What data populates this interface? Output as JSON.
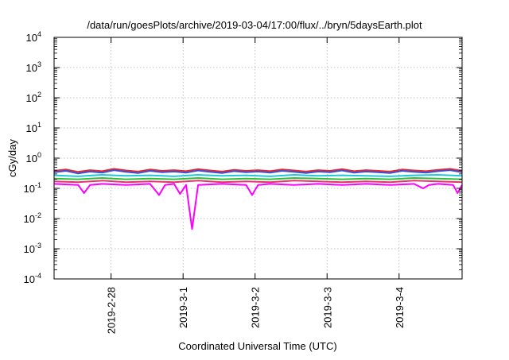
{
  "chart_data": {
    "type": "line",
    "title": "/data/run/goesPlots/archive/2019-03-04/17:00/flux/../bryn/5daysEarth.plot",
    "xlabel": "Coordinated Universal Time (UTC)",
    "ylabel": "cGy/day",
    "yscale": "log",
    "ylim": [
      0.0001,
      10000
    ],
    "xlim": [
      "2019-02-27 05:00",
      "2019-03-04 21:00"
    ],
    "grid": true,
    "legend": "none",
    "y_ticks": [
      {
        "value": 0.0001,
        "base": "10",
        "exp": "-4"
      },
      {
        "value": 0.001,
        "base": "10",
        "exp": "-3"
      },
      {
        "value": 0.01,
        "base": "10",
        "exp": "-2"
      },
      {
        "value": 0.1,
        "base": "10",
        "exp": "-1"
      },
      {
        "value": 1,
        "base": "10",
        "exp": "0"
      },
      {
        "value": 10,
        "base": "10",
        "exp": "1"
      },
      {
        "value": 100,
        "base": "10",
        "exp": "2"
      },
      {
        "value": 1000,
        "base": "10",
        "exp": "3"
      },
      {
        "value": 10000,
        "base": "10",
        "exp": "4"
      }
    ],
    "x_ticks": [
      {
        "value": "2019-02-28 00:00",
        "label": "2019-2-28"
      },
      {
        "value": "2019-03-01 00:00",
        "label": "2019-3-1"
      },
      {
        "value": "2019-03-02 00:00",
        "label": "2019-3-2"
      },
      {
        "value": "2019-03-03 00:00",
        "label": "2019-3-3"
      },
      {
        "value": "2019-03-04 00:00",
        "label": "2019-3-4"
      }
    ],
    "series": [
      {
        "color": "#e8272a",
        "x": [
          "2019-02-27 05:00",
          "2019-02-27 09:00",
          "2019-02-27 13:00",
          "2019-02-27 17:00",
          "2019-02-27 21:00",
          "2019-02-28 01:00",
          "2019-02-28 05:00",
          "2019-02-28 09:00",
          "2019-02-28 13:00",
          "2019-02-28 17:00",
          "2019-02-28 21:00",
          "2019-03-01 01:00",
          "2019-03-01 05:00",
          "2019-03-01 09:00",
          "2019-03-01 13:00",
          "2019-03-01 17:00",
          "2019-03-01 21:00",
          "2019-03-02 01:00",
          "2019-03-02 05:00",
          "2019-03-02 09:00",
          "2019-03-02 13:00",
          "2019-03-02 17:00",
          "2019-03-02 21:00",
          "2019-03-03 01:00",
          "2019-03-03 05:00",
          "2019-03-03 09:00",
          "2019-03-03 13:00",
          "2019-03-03 17:00",
          "2019-03-03 21:00",
          "2019-03-04 01:00",
          "2019-03-04 05:00",
          "2019-03-04 09:00",
          "2019-03-04 13:00",
          "2019-03-04 17:00",
          "2019-03-04 21:00"
        ],
        "y": [
          0.38,
          0.42,
          0.35,
          0.4,
          0.37,
          0.44,
          0.39,
          0.36,
          0.42,
          0.38,
          0.4,
          0.37,
          0.43,
          0.39,
          0.36,
          0.41,
          0.38,
          0.4,
          0.37,
          0.42,
          0.39,
          0.36,
          0.4,
          0.38,
          0.43,
          0.37,
          0.4,
          0.38,
          0.36,
          0.42,
          0.39,
          0.37,
          0.41,
          0.44,
          0.38
        ]
      },
      {
        "color": "#3b4fd8",
        "x": [
          "2019-02-27 05:00",
          "2019-02-27 09:00",
          "2019-02-27 13:00",
          "2019-02-27 17:00",
          "2019-02-27 21:00",
          "2019-02-28 01:00",
          "2019-02-28 05:00",
          "2019-02-28 09:00",
          "2019-02-28 13:00",
          "2019-02-28 17:00",
          "2019-02-28 21:00",
          "2019-03-01 01:00",
          "2019-03-01 05:00",
          "2019-03-01 09:00",
          "2019-03-01 13:00",
          "2019-03-01 17:00",
          "2019-03-01 21:00",
          "2019-03-02 01:00",
          "2019-03-02 05:00",
          "2019-03-02 09:00",
          "2019-03-02 13:00",
          "2019-03-02 17:00",
          "2019-03-02 21:00",
          "2019-03-03 01:00",
          "2019-03-03 05:00",
          "2019-03-03 09:00",
          "2019-03-03 13:00",
          "2019-03-03 17:00",
          "2019-03-03 21:00",
          "2019-03-04 01:00",
          "2019-03-04 05:00",
          "2019-03-04 09:00",
          "2019-03-04 13:00",
          "2019-03-04 17:00",
          "2019-03-04 21:00"
        ],
        "y": [
          0.34,
          0.38,
          0.31,
          0.36,
          0.33,
          0.4,
          0.35,
          0.32,
          0.38,
          0.34,
          0.36,
          0.33,
          0.39,
          0.35,
          0.32,
          0.37,
          0.34,
          0.36,
          0.33,
          0.38,
          0.35,
          0.32,
          0.36,
          0.34,
          0.39,
          0.33,
          0.36,
          0.34,
          0.32,
          0.38,
          0.35,
          0.33,
          0.37,
          0.4,
          0.34
        ]
      },
      {
        "color": "#1ec8d8",
        "x": [
          "2019-02-27 05:00",
          "2019-02-27 13:00",
          "2019-02-27 21:00",
          "2019-02-28 05:00",
          "2019-02-28 13:00",
          "2019-02-28 21:00",
          "2019-03-01 05:00",
          "2019-03-01 13:00",
          "2019-03-01 21:00",
          "2019-03-02 05:00",
          "2019-03-02 13:00",
          "2019-03-02 21:00",
          "2019-03-03 05:00",
          "2019-03-03 13:00",
          "2019-03-03 21:00",
          "2019-03-04 05:00",
          "2019-03-04 13:00",
          "2019-03-04 21:00"
        ],
        "y": [
          0.27,
          0.25,
          0.28,
          0.26,
          0.27,
          0.25,
          0.28,
          0.26,
          0.27,
          0.25,
          0.28,
          0.26,
          0.27,
          0.26,
          0.25,
          0.27,
          0.28,
          0.26
        ]
      },
      {
        "color": "#2fbf3a",
        "x": [
          "2019-02-27 05:00",
          "2019-02-27 13:00",
          "2019-02-27 21:00",
          "2019-02-28 05:00",
          "2019-02-28 13:00",
          "2019-02-28 21:00",
          "2019-03-01 05:00",
          "2019-03-01 13:00",
          "2019-03-01 21:00",
          "2019-03-02 05:00",
          "2019-03-02 13:00",
          "2019-03-02 21:00",
          "2019-03-03 05:00",
          "2019-03-03 13:00",
          "2019-03-03 21:00",
          "2019-03-04 05:00",
          "2019-03-04 13:00",
          "2019-03-04 21:00"
        ],
        "y": [
          0.21,
          0.2,
          0.22,
          0.2,
          0.21,
          0.2,
          0.22,
          0.2,
          0.21,
          0.2,
          0.22,
          0.21,
          0.2,
          0.21,
          0.2,
          0.22,
          0.21,
          0.2
        ]
      },
      {
        "color": "#e8306e",
        "x": [
          "2019-02-27 05:00",
          "2019-02-27 13:00",
          "2019-02-27 21:00",
          "2019-02-28 05:00",
          "2019-02-28 13:00",
          "2019-02-28 21:00",
          "2019-03-01 05:00",
          "2019-03-01 13:00",
          "2019-03-01 21:00",
          "2019-03-02 05:00",
          "2019-03-02 13:00",
          "2019-03-02 21:00",
          "2019-03-03 05:00",
          "2019-03-03 13:00",
          "2019-03-03 21:00",
          "2019-03-04 05:00",
          "2019-03-04 13:00",
          "2019-03-04 21:00"
        ],
        "y": [
          0.17,
          0.16,
          0.18,
          0.16,
          0.17,
          0.16,
          0.18,
          0.16,
          0.17,
          0.16,
          0.18,
          0.17,
          0.16,
          0.17,
          0.16,
          0.18,
          0.17,
          0.16
        ]
      },
      {
        "color": "#ff00ff",
        "x": [
          "2019-02-27 05:00",
          "2019-02-27 13:00",
          "2019-02-27 15:00",
          "2019-02-27 17:00",
          "2019-02-27 21:00",
          "2019-02-28 05:00",
          "2019-02-28 13:00",
          "2019-02-28 16:00",
          "2019-02-28 18:00",
          "2019-02-28 21:00",
          "2019-02-28 23:00",
          "2019-03-01 01:00",
          "2019-03-01 03:00",
          "2019-03-01 05:00",
          "2019-03-01 13:00",
          "2019-03-01 21:00",
          "2019-03-01 23:00",
          "2019-03-02 01:00",
          "2019-03-02 05:00",
          "2019-03-02 13:00",
          "2019-03-02 21:00",
          "2019-03-03 05:00",
          "2019-03-03 13:00",
          "2019-03-03 21:00",
          "2019-03-04 05:00",
          "2019-03-04 08:00",
          "2019-03-04 10:00",
          "2019-03-04 13:00",
          "2019-03-04 18:00",
          "2019-03-04 19:30",
          "2019-03-04 21:00"
        ],
        "y": [
          0.14,
          0.13,
          0.07,
          0.13,
          0.14,
          0.13,
          0.14,
          0.06,
          0.13,
          0.14,
          0.065,
          0.13,
          0.0045,
          0.13,
          0.14,
          0.13,
          0.06,
          0.13,
          0.14,
          0.13,
          0.14,
          0.13,
          0.14,
          0.13,
          0.14,
          0.1,
          0.13,
          0.14,
          0.13,
          0.07,
          0.13
        ]
      }
    ]
  }
}
